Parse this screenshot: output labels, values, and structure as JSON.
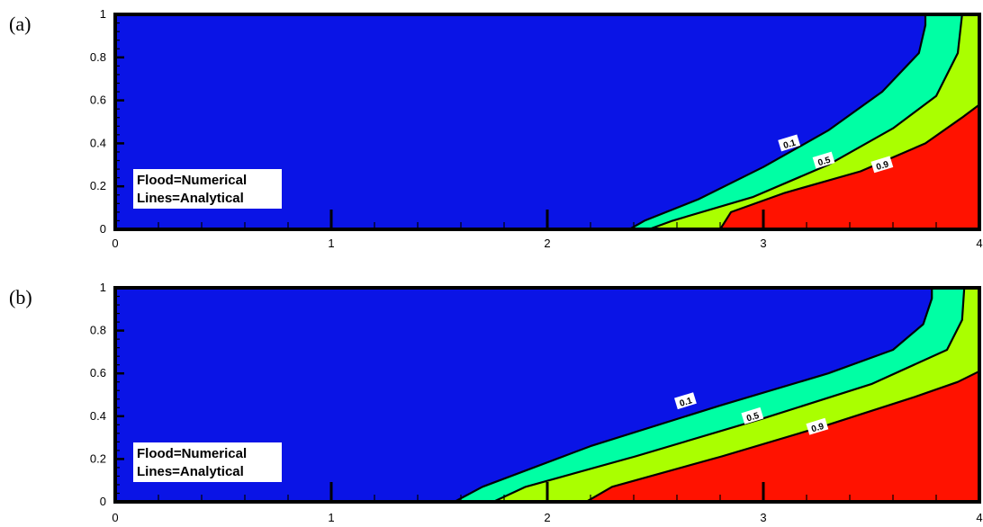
{
  "chart_data": [
    {
      "type": "contour",
      "panel_label": "(a)",
      "xlim": [
        0,
        4
      ],
      "ylim": [
        0,
        1
      ],
      "xticks": [
        "0",
        "1",
        "2",
        "3",
        "4"
      ],
      "yticks": [
        "0",
        "0.2",
        "0.4",
        "0.6",
        "0.8",
        "1"
      ],
      "legend": [
        "Flood=Numerical",
        "Lines=Analytical"
      ],
      "fill_colors": {
        "below_0.1": "#0a14e6",
        "0.1_to_0.5": "#00ffa4",
        "0.5_to_0.9": "#aaff00",
        "above_0.9": "#ff1200"
      },
      "contours": [
        {
          "level": "0.1",
          "label_at": [
            3.12,
            0.4
          ],
          "points": [
            [
              2.38,
              0.0
            ],
            [
              2.45,
              0.04
            ],
            [
              2.7,
              0.14
            ],
            [
              3.0,
              0.29
            ],
            [
              3.3,
              0.46
            ],
            [
              3.55,
              0.64
            ],
            [
              3.72,
              0.82
            ],
            [
              3.75,
              0.95
            ],
            [
              3.75,
              1.0
            ]
          ]
        },
        {
          "level": "0.5",
          "label_at": [
            3.28,
            0.32
          ],
          "points": [
            [
              2.47,
              0.0
            ],
            [
              2.58,
              0.04
            ],
            [
              2.95,
              0.15
            ],
            [
              3.3,
              0.3
            ],
            [
              3.6,
              0.47
            ],
            [
              3.8,
              0.62
            ],
            [
              3.9,
              0.82
            ],
            [
              3.92,
              1.0
            ]
          ]
        },
        {
          "level": "0.9",
          "label_at": [
            3.55,
            0.3
          ],
          "points": [
            [
              2.8,
              0.0
            ],
            [
              2.85,
              0.08
            ],
            [
              3.1,
              0.17
            ],
            [
              3.45,
              0.27
            ],
            [
              3.75,
              0.4
            ],
            [
              3.92,
              0.52
            ],
            [
              4.0,
              0.58
            ]
          ]
        }
      ]
    },
    {
      "type": "contour",
      "panel_label": "(b)",
      "xlim": [
        0,
        4
      ],
      "ylim": [
        0,
        1
      ],
      "xticks": [
        "0",
        "1",
        "2",
        "3",
        "4"
      ],
      "yticks": [
        "0",
        "0.2",
        "0.4",
        "0.6",
        "0.8",
        "1"
      ],
      "legend": [
        "Flood=Numerical",
        "Lines=Analytical"
      ],
      "fill_colors": {
        "below_0.1": "#0a14e6",
        "0.1_to_0.5": "#00ffa4",
        "0.5_to_0.9": "#aaff00",
        "above_0.9": "#ff1200"
      },
      "contours": [
        {
          "level": "0.1",
          "label_at": [
            2.64,
            0.47
          ],
          "points": [
            [
              1.57,
              0.0
            ],
            [
              1.7,
              0.07
            ],
            [
              2.2,
              0.26
            ],
            [
              2.8,
              0.45
            ],
            [
              3.3,
              0.6
            ],
            [
              3.6,
              0.71
            ],
            [
              3.74,
              0.83
            ],
            [
              3.78,
              0.95
            ],
            [
              3.78,
              1.0
            ]
          ]
        },
        {
          "level": "0.5",
          "label_at": [
            2.95,
            0.4
          ],
          "points": [
            [
              1.75,
              0.0
            ],
            [
              1.9,
              0.07
            ],
            [
              2.4,
              0.21
            ],
            [
              3.0,
              0.39
            ],
            [
              3.5,
              0.55
            ],
            [
              3.85,
              0.71
            ],
            [
              3.92,
              0.85
            ],
            [
              3.93,
              1.0
            ]
          ]
        },
        {
          "level": "0.9",
          "label_at": [
            3.25,
            0.35
          ],
          "points": [
            [
              2.18,
              0.0
            ],
            [
              2.3,
              0.07
            ],
            [
              2.8,
              0.21
            ],
            [
              3.3,
              0.36
            ],
            [
              3.7,
              0.49
            ],
            [
              3.9,
              0.56
            ],
            [
              4.0,
              0.61
            ]
          ]
        }
      ]
    }
  ]
}
